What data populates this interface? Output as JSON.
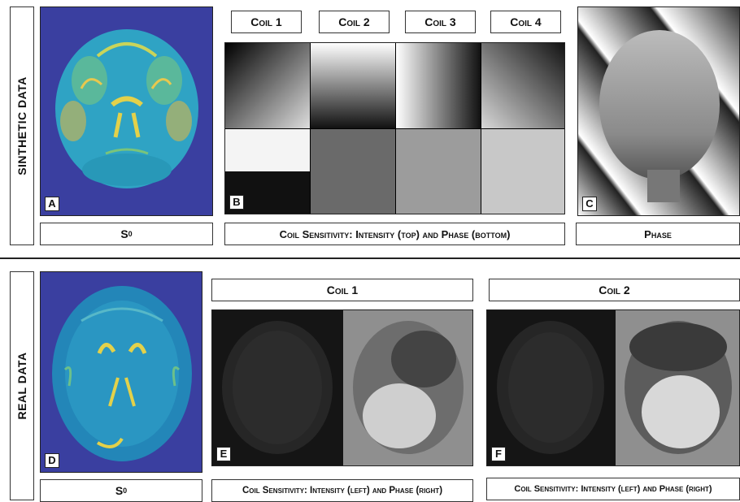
{
  "synthetic": {
    "row_label": "SINTHETIC DATA",
    "coils": [
      "Coil 1",
      "Coil 2",
      "Coil 3",
      "Coil 4"
    ],
    "panel_a_letter": "A",
    "panel_b_letter": "B",
    "panel_c_letter": "C",
    "s0_label_base": "S",
    "s0_label_sub": "0",
    "coil_caption": "Coil Sensitivity: Intensity (top) and Phase (bottom)",
    "phase_caption": "Phase"
  },
  "real": {
    "row_label": "REAL DATA",
    "panel_d_letter": "D",
    "panel_e_letter": "E",
    "panel_f_letter": "F",
    "coil1_title": "Coil 1",
    "coil2_title": "Coil 2",
    "s0_label_base": "S",
    "s0_label_sub": "0",
    "coil1_caption": "Coil Sensitivity: Intensity (left) and Phase (right)",
    "coil2_caption": "Coil Sensitivity: Intensity (left) and Phase (right)"
  },
  "colors": {
    "map_background": "#3a3fa0",
    "brain_base": "#2fa3c4",
    "brain_highlight": "#e3d14a",
    "gray_background": "#8f8f8f"
  }
}
